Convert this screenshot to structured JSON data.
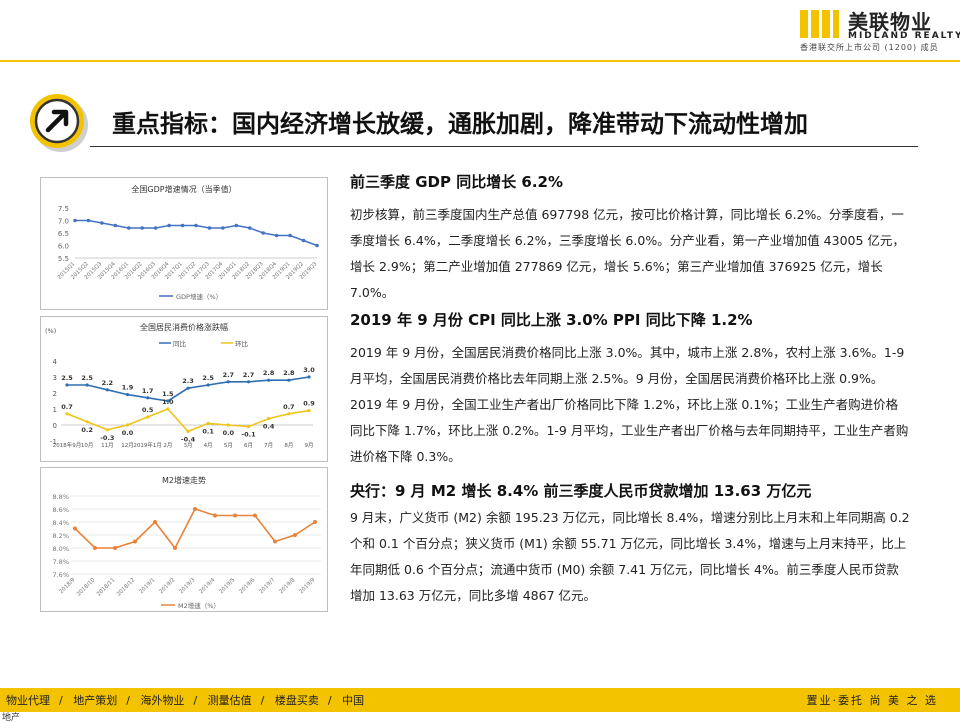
{
  "brand": {
    "name_cn": "美联物业",
    "name_en": "MIDLAND REALTY",
    "listing": "香港联交所上市公司 (1200) 成员"
  },
  "title": "重点指标：国内经济增长放缓，通胀加剧，降准带动下流动性增加",
  "sections": [
    {
      "heading": "前三季度 GDP 同比增长 6.2%",
      "body": "初步核算，前三季度国内生产总值 697798 亿元，按可比价格计算，同比增长 6.2%。分季度看，一季度增长 6.4%，二季度增长 6.2%，三季度增长 6.0%。分产业看，第一产业增加值 43005 亿元，增长 2.9%；第二产业增加值 277869 亿元，增长 5.6%；第三产业增加值 376925 亿元，增长 7.0%。"
    },
    {
      "heading": "2019 年 9 月份 CPI 同比上涨 3.0%  PPI 同比下降 1.2%",
      "body": "2019 年 9 月份，全国居民消费价格同比上涨 3.0%。其中，城市上涨 2.8%，农村上涨 3.6%。1-9 月平均，全国居民消费价格比去年同期上涨 2.5%。9 月份，全国居民消费价格环比上涨 0.9%。2019 年 9 月份，全国工业生产者出厂价格同比下降 1.2%，环比上涨 0.1%；工业生产者购进价格同比下降 1.7%，环比上涨 0.2%。1-9 月平均，工业生产者出厂价格与去年同期持平，工业生产者购进价格下降 0.3%。"
    },
    {
      "heading": "央行：9 月 M2 增长 8.4%  前三季度人民币贷款增加 13.63 万亿元",
      "body": "9 月末，广义货币 (M2) 余额 195.23 万亿元，同比增长 8.4%，增速分别比上月末和上年同期高 0.2 个和 0.1 个百分点；狭义货币 (M1) 余额 55.71 万亿元，同比增长 3.4%，增速与上月末持平，比上年同期低 0.6 个百分点；流通中货币 (M0) 余额 7.41 万亿元，同比增长 4%。前三季度人民币贷款增加 13.63 万亿元，同比多增 4867 亿元。"
    }
  ],
  "nav": [
    "物业代理",
    "地产策划",
    "海外物业",
    "测量估值",
    "楼盘买卖",
    "中国"
  ],
  "slogan": "置业·委托  尚 美 之 选",
  "corner_text": "地产",
  "colors": {
    "accent": "#f4c300",
    "gdp_line": "#4472c4",
    "cpi_yoy": "#2e6eb5",
    "cpi_mom": "#f0c419",
    "m2_line": "#e8833a"
  },
  "chart_data": [
    {
      "type": "line",
      "title": "全国GDP增速情况（当季值）",
      "categories": [
        "2015Q1",
        "2015Q2",
        "2015Q3",
        "2015Q4",
        "2016Q1",
        "2016Q2",
        "2016Q3",
        "2016Q4",
        "2017Q1",
        "2017Q2",
        "2017Q3",
        "2017Q4",
        "2018Q1",
        "2018Q2",
        "2018Q3",
        "2018Q4",
        "2019Q1",
        "2019Q2",
        "2019Q3"
      ],
      "series": [
        {
          "name": "GDP增速（%）",
          "values": [
            7.0,
            7.0,
            6.9,
            6.8,
            6.7,
            6.7,
            6.7,
            6.8,
            6.8,
            6.8,
            6.7,
            6.7,
            6.8,
            6.7,
            6.5,
            6.4,
            6.4,
            6.2,
            6.0
          ]
        }
      ],
      "yticks": [
        "7.5",
        "7.0",
        "6.5",
        "6.0",
        "5.5"
      ],
      "ylim": [
        5.5,
        7.5
      ],
      "legend": "bottom",
      "grid": false
    },
    {
      "type": "line",
      "title": "全国居民消费价格涨跌幅",
      "ylabel": "(%)",
      "categories": [
        "2018年9月",
        "10月",
        "11月",
        "12月",
        "2019年1月",
        "2月",
        "3月",
        "4月",
        "5月",
        "6月",
        "7月",
        "8月",
        "9月"
      ],
      "series": [
        {
          "name": "同比",
          "values": [
            2.5,
            2.5,
            2.2,
            1.9,
            1.7,
            1.5,
            2.3,
            2.5,
            2.7,
            2.7,
            2.8,
            2.8,
            3.0
          ],
          "labels": [
            "2.5",
            "2.5",
            "2.2",
            "1.9",
            "1.7",
            "1.5",
            "2.3",
            "2.5",
            "2.7",
            "2.7",
            "2.8",
            "2.8",
            "3.0"
          ]
        },
        {
          "name": "环比",
          "values": [
            0.7,
            0.2,
            -0.3,
            0.0,
            0.5,
            1.0,
            -0.4,
            0.1,
            0.0,
            -0.1,
            0.4,
            0.7,
            0.9
          ],
          "labels": [
            "0.7",
            "0.2",
            "-0.3",
            "0.0",
            "0.5",
            "1.0",
            "-0.4",
            "0.1",
            "0.0",
            "-0.1",
            "0.4",
            "0.7",
            "0.9"
          ]
        }
      ],
      "yticks": [
        "4",
        "3",
        "2",
        "1",
        "0",
        "-1"
      ],
      "ylim": [
        -1,
        4
      ],
      "legend": "top",
      "grid": false
    },
    {
      "type": "line",
      "title": "M2增速走势",
      "categories": [
        "2018/9",
        "2018/10",
        "2018/11",
        "2018/12",
        "2019/1",
        "2019/2",
        "2019/3",
        "2019/4",
        "2019/5",
        "2019/6",
        "2019/7",
        "2019/8",
        "2019/9"
      ],
      "series": [
        {
          "name": "M2增速（%）",
          "values": [
            8.3,
            8.0,
            8.0,
            8.1,
            8.4,
            8.0,
            8.6,
            8.5,
            8.5,
            8.5,
            8.1,
            8.2,
            8.4
          ]
        }
      ],
      "yticks": [
        "8.8%",
        "8.6%",
        "8.4%",
        "8.2%",
        "8.0%",
        "7.8%",
        "7.6%"
      ],
      "ylim": [
        7.6,
        8.8
      ],
      "legend": "bottom",
      "grid": true
    }
  ]
}
